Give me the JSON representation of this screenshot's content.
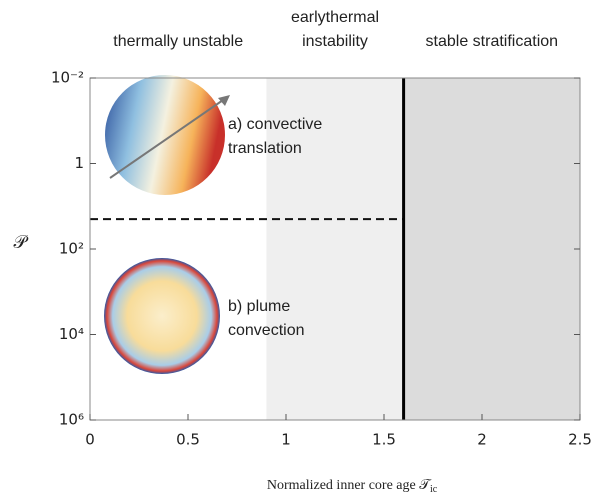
{
  "chart_data": {
    "type": "regime",
    "ylabel": "𝒫",
    "xlabel": "Normalized inner core age 𝒯",
    "xlabel_subscript": "ic",
    "xlim": [
      0,
      2.5
    ],
    "xticks": [
      0,
      0.5,
      1,
      1.5,
      2,
      2.5
    ],
    "ylim": [
      0.01,
      1000000
    ],
    "ylog": true,
    "yreversed": true,
    "yticks": [
      {
        "value": 0.01,
        "label": "10⁻²"
      },
      1,
      {
        "value": 100,
        "label": "10²"
      },
      {
        "value": 10000,
        "label": "10⁴"
      },
      {
        "value": 1000000,
        "label": "10⁶"
      }
    ],
    "regions": [
      {
        "lines": [
          "thermally unstable"
        ],
        "x": [
          0,
          0.9
        ],
        "color": "#ffffff"
      },
      {
        "lines": [
          "earlythermal",
          "instability"
        ],
        "x": [
          0.9,
          1.6
        ],
        "color": "#efefef"
      },
      {
        "lines": [
          "stable stratification"
        ],
        "x": [
          1.6,
          2.5
        ],
        "color": "#dcdcdc"
      }
    ],
    "boundary_x": 1.6,
    "threshold_y": 20,
    "annotations": [
      {
        "lines": [
          "a) convective",
          "translation"
        ]
      },
      {
        "lines": [
          "b) plume",
          "convection"
        ]
      }
    ]
  }
}
